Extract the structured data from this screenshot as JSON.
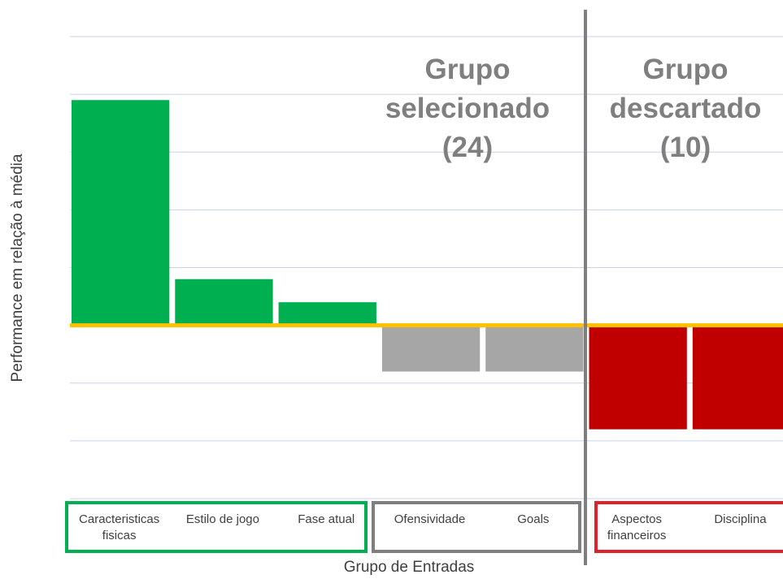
{
  "chart_data": {
    "type": "bar",
    "categories": [
      "Caracteristicas fisicas",
      "Estilo de jogo",
      "Fase atual",
      "Ofensividade",
      "Goals",
      "Aspectos financeiros",
      "Disciplina"
    ],
    "values": [
      3.9,
      0.8,
      0.4,
      -0.8,
      -0.8,
      -1.8,
      -1.8
    ],
    "colors": [
      "#00b050",
      "#00b050",
      "#00b050",
      "#a6a6a6",
      "#a6a6a6",
      "#c00000",
      "#c00000"
    ],
    "ylim": [
      -3,
      5
    ],
    "yticks": [
      -3,
      -2,
      -1,
      0,
      1,
      2,
      3,
      4,
      5
    ],
    "grid": true,
    "y_label": "Performance em relação à média",
    "x_label": "Grupo de Entradas",
    "annotations": [
      "Grupo selecionado (24)",
      "Grupo descartado (10)"
    ]
  }
}
